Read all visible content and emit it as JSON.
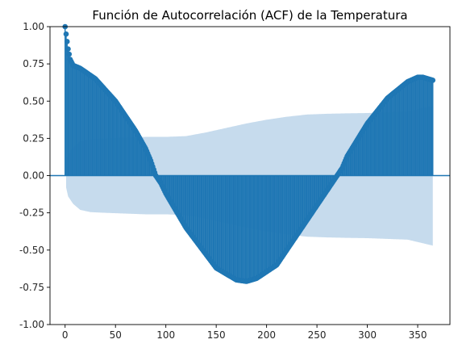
{
  "chart_data": {
    "type": "bar",
    "title": "Función de Autocorrelación (ACF) de la Temperatura",
    "xlabel": "",
    "ylabel": "",
    "xlim": [
      -15,
      382
    ],
    "ylim": [
      -1.0,
      1.0
    ],
    "x_ticks": [
      0,
      50,
      100,
      150,
      200,
      250,
      300,
      350
    ],
    "y_ticks": [
      "-1.00",
      "-0.75",
      "-0.50",
      "-0.25",
      "0.00",
      "0.25",
      "0.50",
      "0.75",
      "1.00"
    ],
    "y_tick_values": [
      -1.0,
      -0.75,
      -0.5,
      -0.25,
      0.0,
      0.25,
      0.5,
      0.75,
      1.0
    ],
    "grid": false,
    "colors": {
      "acf": "#1f77b4",
      "confidence_band": "#c6dbed",
      "axes": "#000000"
    },
    "max_lag": 365,
    "acf_keypoints": {
      "lag": [
        0,
        1,
        2,
        3,
        5,
        8,
        15,
        30,
        50,
        70,
        80,
        85,
        90,
        95,
        100,
        120,
        150,
        170,
        180,
        190,
        210,
        240,
        260,
        270,
        275,
        280,
        300,
        320,
        340,
        350,
        355,
        360,
        365
      ],
      "value": [
        1.0,
        0.95,
        0.9,
        0.85,
        0.78,
        0.74,
        0.72,
        0.65,
        0.5,
        0.3,
        0.18,
        0.1,
        0.0,
        -0.05,
        -0.12,
        -0.35,
        -0.62,
        -0.7,
        -0.71,
        -0.69,
        -0.6,
        -0.3,
        -0.1,
        0.0,
        0.05,
        0.13,
        0.35,
        0.52,
        0.63,
        0.66,
        0.66,
        0.65,
        0.64
      ]
    },
    "confidence_interval_upper": {
      "lag": [
        0,
        1,
        3,
        8,
        15,
        25,
        40,
        60,
        80,
        100,
        120,
        140,
        160,
        180,
        200,
        220,
        240,
        260,
        280,
        300,
        320,
        340,
        365
      ],
      "value": [
        0.0,
        0.08,
        0.14,
        0.19,
        0.23,
        0.245,
        0.25,
        0.255,
        0.26,
        0.26,
        0.265,
        0.29,
        0.32,
        0.35,
        0.375,
        0.395,
        0.41,
        0.415,
        0.418,
        0.42,
        0.425,
        0.43,
        0.47
      ]
    }
  }
}
